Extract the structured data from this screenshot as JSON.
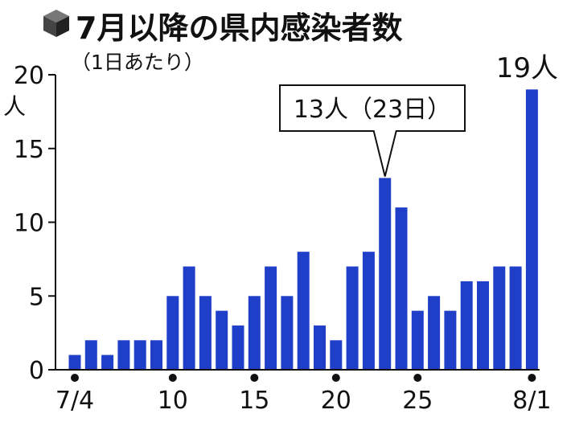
{
  "chart_data": {
    "type": "bar",
    "title": "7月以降の県内感染者数",
    "subtitle": "（1日あたり）",
    "y_unit": "人",
    "ylim": [
      0,
      20
    ],
    "y_ticks": [
      "0",
      "5",
      "10",
      "15",
      "20"
    ],
    "x_tick_labels": [
      {
        "index": 0,
        "label": "7/4"
      },
      {
        "index": 6,
        "label": "10"
      },
      {
        "index": 11,
        "label": "15"
      },
      {
        "index": 16,
        "label": "20"
      },
      {
        "index": 21,
        "label": "25"
      },
      {
        "index": 28,
        "label": "8/1"
      }
    ],
    "categories": [
      "7/4",
      "7/5",
      "7/6",
      "7/7",
      "7/8",
      "7/9",
      "7/10",
      "7/11",
      "7/12",
      "7/13",
      "7/14",
      "7/15",
      "7/16",
      "7/17",
      "7/18",
      "7/19",
      "7/20",
      "7/21",
      "7/22",
      "7/23",
      "7/24",
      "7/25",
      "7/26",
      "7/27",
      "7/28",
      "7/29",
      "7/30",
      "7/31",
      "8/1"
    ],
    "values": [
      1,
      2,
      1,
      2,
      2,
      2,
      5,
      7,
      5,
      4,
      3,
      5,
      7,
      5,
      8,
      3,
      2,
      7,
      8,
      13,
      11,
      4,
      5,
      4,
      6,
      6,
      7,
      7,
      19
    ],
    "bar_color": "#1f3fc8",
    "callout": {
      "index": 19,
      "text": "13人（23日）"
    },
    "end_label": {
      "index": 28,
      "text": "19人"
    }
  }
}
